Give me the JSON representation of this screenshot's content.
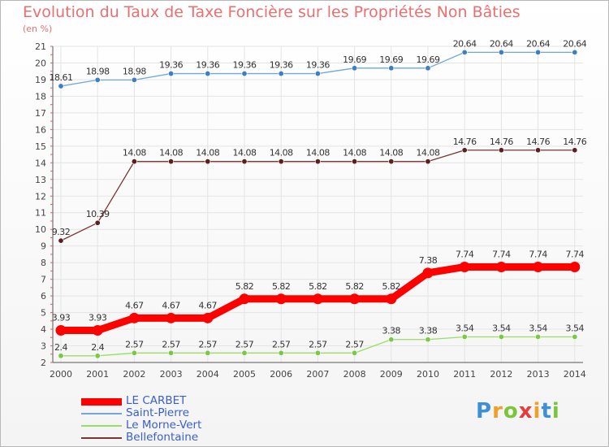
{
  "chart_data": {
    "type": "line",
    "title": "Evolution du Taux de Taxe Foncière sur les Propriétés Non Bâties",
    "ylabel": "(en %)",
    "xlabel": "",
    "x": [
      "2000",
      "2001",
      "2002",
      "2003",
      "2004",
      "2005",
      "2006",
      "2007",
      "2008",
      "2009",
      "2010",
      "2011",
      "2012",
      "2013",
      "2014"
    ],
    "ylim": [
      2,
      21
    ],
    "yticks": [
      2,
      3,
      4,
      5,
      6,
      7,
      8,
      9,
      10,
      11,
      12,
      13,
      14,
      15,
      16,
      17,
      18,
      19,
      20,
      21
    ],
    "series": [
      {
        "name": "LE CARBET",
        "color": "#ff0000",
        "values": [
          3.93,
          3.93,
          4.67,
          4.67,
          4.67,
          5.82,
          5.82,
          5.82,
          5.82,
          5.82,
          7.38,
          7.74,
          7.74,
          7.74,
          7.74
        ],
        "labels": [
          "3.93",
          "3.93",
          "4.67",
          "4.67",
          "4.67",
          "5.82",
          "5.82",
          "5.82",
          "5.82",
          "5.82",
          "7.38",
          "7.74",
          "7.74",
          "7.74",
          "7.74"
        ]
      },
      {
        "name": "Saint-Pierre",
        "color": "#6fa8dc",
        "values": [
          18.61,
          18.98,
          18.98,
          19.36,
          19.36,
          19.36,
          19.36,
          19.36,
          19.69,
          19.69,
          19.69,
          20.64,
          20.64,
          20.64,
          20.64
        ],
        "labels": [
          "18.61",
          "18.98",
          "18.98",
          "19.36",
          "19.36",
          "19.36",
          "19.36",
          "19.36",
          "19.69",
          "19.69",
          "19.69",
          "20.64",
          "20.64",
          "20.64",
          "20.64"
        ]
      },
      {
        "name": "Le Morne-Vert",
        "color": "#99dd66",
        "values": [
          2.4,
          2.4,
          2.57,
          2.57,
          2.57,
          2.57,
          2.57,
          2.57,
          2.57,
          3.38,
          3.38,
          3.54,
          3.54,
          3.54,
          3.54
        ],
        "labels": [
          "2.4",
          "2.4",
          "2.57",
          "2.57",
          "2.57",
          "2.57",
          "2.57",
          "2.57",
          "2.57",
          "3.38",
          "3.38",
          "3.54",
          "3.54",
          "3.54",
          "3.54"
        ]
      },
      {
        "name": "Bellefontaine",
        "color": "#7a3535",
        "values": [
          9.32,
          10.39,
          14.08,
          14.08,
          14.08,
          14.08,
          14.08,
          14.08,
          14.08,
          14.08,
          14.08,
          14.76,
          14.76,
          14.76,
          14.76
        ],
        "labels": [
          "9.32",
          "10.39",
          "14.08",
          "14.08",
          "14.08",
          "14.08",
          "14.08",
          "14.08",
          "14.08",
          "14.08",
          "14.08",
          "14.76",
          "14.76",
          "14.76",
          "14.76"
        ]
      }
    ],
    "legend": [
      "LE CARBET",
      "Saint-Pierre",
      "Le Morne-Vert",
      "Bellefontaine"
    ]
  },
  "logo": {
    "letters": [
      {
        "char": "P",
        "color": "#3d8fd6"
      },
      {
        "char": "r",
        "color": "#f0a028"
      },
      {
        "char": "o",
        "color": "#7cc43a"
      },
      {
        "char": "x",
        "color": "#e83c3c"
      },
      {
        "char": "i",
        "color": "#f0a028"
      },
      {
        "char": "t",
        "color": "#3d8fd6"
      },
      {
        "char": "i",
        "color": "#7cc43a"
      }
    ]
  }
}
